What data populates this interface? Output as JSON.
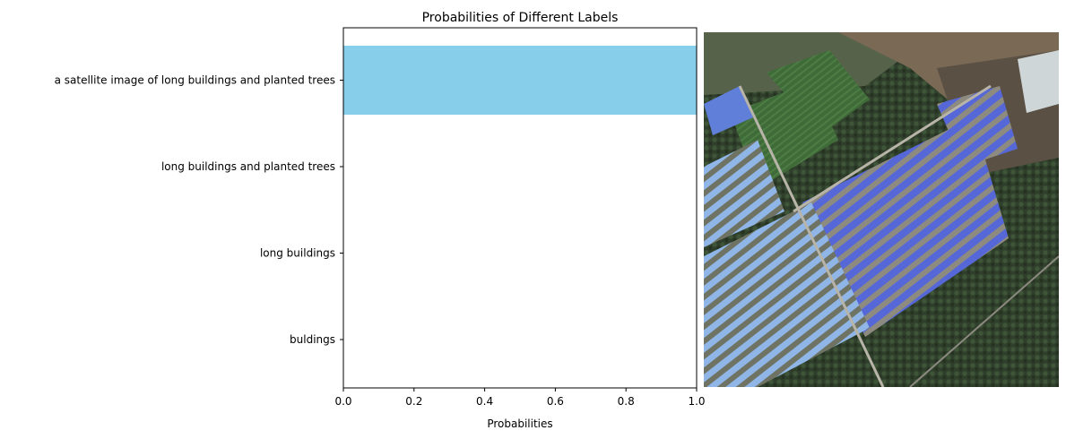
{
  "chart_data": {
    "type": "bar",
    "orientation": "horizontal",
    "title": "Probabilities of Different Labels",
    "xlabel": "Probabilities",
    "ylabel": "",
    "xlim": [
      0,
      1.0
    ],
    "xticks": [
      "0.0",
      "0.2",
      "0.4",
      "0.6",
      "0.8",
      "1.0"
    ],
    "categories": [
      "a satellite image of long buildings and planted trees",
      "long buildings and planted trees",
      "long buildings",
      "buldings"
    ],
    "values": [
      1.0,
      0.0,
      0.0,
      0.0
    ],
    "bar_color": "#87ceeb",
    "grid": false,
    "legend": "none"
  },
  "image": {
    "icon": "satellite-image-of-long-buildings-and-trees"
  }
}
